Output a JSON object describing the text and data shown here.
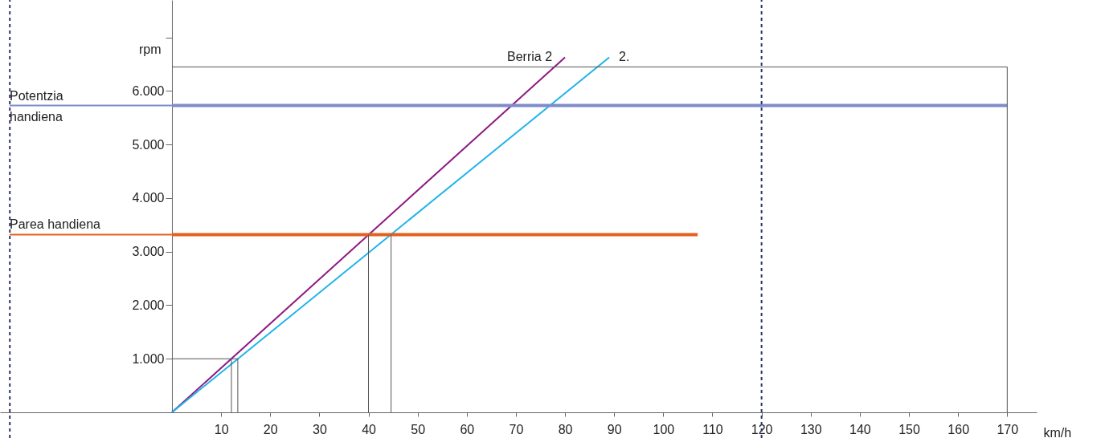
{
  "chart_data": {
    "type": "line",
    "xlabel": "km/h",
    "ylabel": "rpm",
    "xlim": [
      -35,
      176
    ],
    "ylim": [
      0,
      7700
    ],
    "xticks": [
      10,
      20,
      30,
      40,
      50,
      60,
      70,
      80,
      90,
      100,
      110,
      120,
      130,
      140,
      150,
      160,
      170
    ],
    "yticks": [
      {
        "value": 1000,
        "label": "1.000"
      },
      {
        "value": 2000,
        "label": "2.000"
      },
      {
        "value": 3000,
        "label": "3.000"
      },
      {
        "value": 4000,
        "label": "4.000"
      },
      {
        "value": 5000,
        "label": "5.000"
      },
      {
        "value": 6000,
        "label": "6.000"
      },
      {
        "value": 7000,
        "label": null
      }
    ],
    "grid": false,
    "marker": "none",
    "line_style": "solid",
    "series": [
      {
        "name": "Berria 2",
        "color": "#8e1a80",
        "x": [
          0,
          80
        ],
        "values": [
          0,
          6630
        ]
      },
      {
        "name": "2.",
        "color": "#1fb3ea",
        "x": [
          0,
          89
        ],
        "values": [
          0,
          6630
        ]
      },
      {
        "name": "Potentzia\nhandiena",
        "color": "#7f8cc9",
        "x": [
          0,
          170
        ],
        "values": [
          5730,
          5730
        ]
      },
      {
        "name": "Parea handiena",
        "color": "#e2611f",
        "x": [
          0,
          107
        ],
        "values": [
          3320,
          3320
        ]
      },
      {
        "color": "#555555",
        "x": [
          0,
          170,
          170
        ],
        "values": [
          6450,
          6450,
          0
        ]
      },
      {
        "color": "#555555",
        "x": [
          0,
          13.4,
          13.4
        ],
        "values": [
          1000,
          1000,
          0
        ]
      },
      {
        "color": "#555555",
        "x": [
          12.1,
          12.1
        ],
        "values": [
          1000,
          0
        ]
      },
      {
        "color": "#555555",
        "x": [
          40,
          40
        ],
        "values": [
          3320,
          0
        ]
      },
      {
        "color": "#555555",
        "x": [
          44.6,
          44.6
        ],
        "values": [
          3320,
          0
        ]
      }
    ],
    "ref_lines": [
      {
        "axis": "x",
        "value": 120,
        "color": "#2c3566",
        "line_style": "dashed"
      },
      {
        "axis": "x",
        "value": -33,
        "color": "#2c3566",
        "line_style": "dashed"
      }
    ]
  }
}
